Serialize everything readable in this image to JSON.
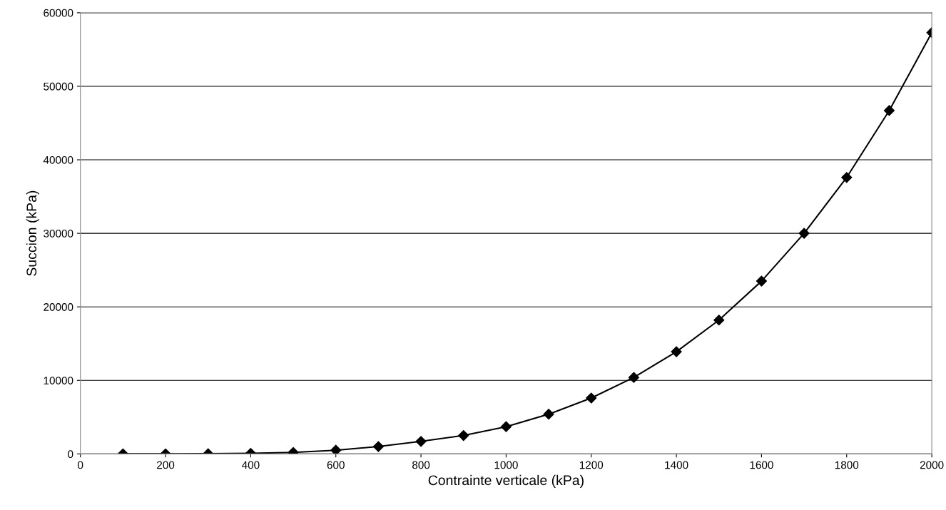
{
  "chart_data": {
    "type": "line",
    "xlabel": "Contrainte verticale (kPa)",
    "ylabel": "Succion (kPa)",
    "x": [
      100,
      200,
      300,
      400,
      500,
      600,
      700,
      800,
      900,
      1000,
      1100,
      1200,
      1300,
      1400,
      1500,
      1600,
      1700,
      1800,
      1900,
      2000
    ],
    "series": [
      {
        "color": "#000000",
        "values": [
          0,
          0,
          20,
          80,
          200,
          500,
          1000,
          1700,
          2500,
          3700,
          5400,
          7600,
          10400,
          13900,
          18200,
          23500,
          30000,
          37600,
          46700,
          57300
        ]
      }
    ],
    "xlim": [
      0,
      2000
    ],
    "ylim": [
      0,
      60000
    ],
    "xticks": [
      0,
      200,
      400,
      600,
      800,
      1000,
      1200,
      1400,
      1600,
      1800,
      2000
    ],
    "yticks": [
      0,
      10000,
      20000,
      30000,
      40000,
      50000,
      60000
    ],
    "grid": "y",
    "marker": "diamond",
    "line_style": "solid"
  }
}
